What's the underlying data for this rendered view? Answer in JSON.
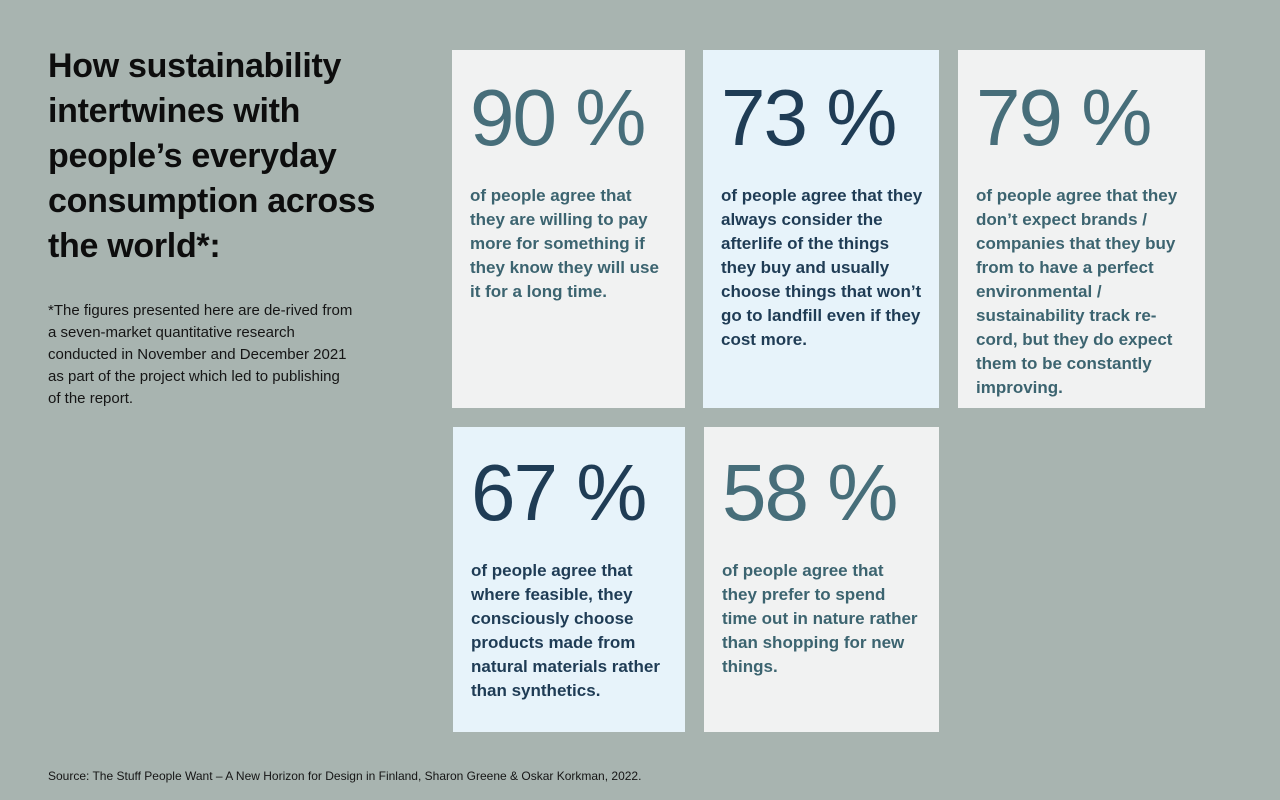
{
  "header": {
    "title": "How sustainability intertwines with people’s everyday consumption across the world*:",
    "footnote": "*The figures presented here are de-rived from a seven-market quantitative research conducted in November and December 2021 as part of the project which led to publishing of the report."
  },
  "cards": [
    {
      "percent": "90 %",
      "value": 90,
      "description": "of people agree that they are willing to pay more for something if they know they will use it for a long time."
    },
    {
      "percent": "73 %",
      "value": 73,
      "description": "of people agree that they always consider the afterlife of the things they buy and usually choose things that won’t go to landfill even if they cost more."
    },
    {
      "percent": "79 %",
      "value": 79,
      "description": "of people agree that they don’t expect brands / companies that they buy from to have a perfect environmental / sustainability track re-cord, but they do expect them to be constantly improving."
    },
    {
      "percent": "67 %",
      "value": 67,
      "description": "of people agree that where feasible, they consciously choose products made from natural materials rather than synthetics."
    },
    {
      "percent": "58 %",
      "value": 58,
      "description": "of people agree that they prefer to spend time out in nature rather than shopping for new things."
    }
  ],
  "footer": {
    "source": "Source: The Stuff People Want – A New Horizon for Design in Finland, Sharon Greene & Oskar Korkman, 2022."
  },
  "colors": {
    "background": "#a8b4b0",
    "card_gray": "#f1f2f2",
    "card_blue": "#e7f3fa",
    "text_teal": "#476e7a",
    "text_navy": "#1f3c55"
  }
}
